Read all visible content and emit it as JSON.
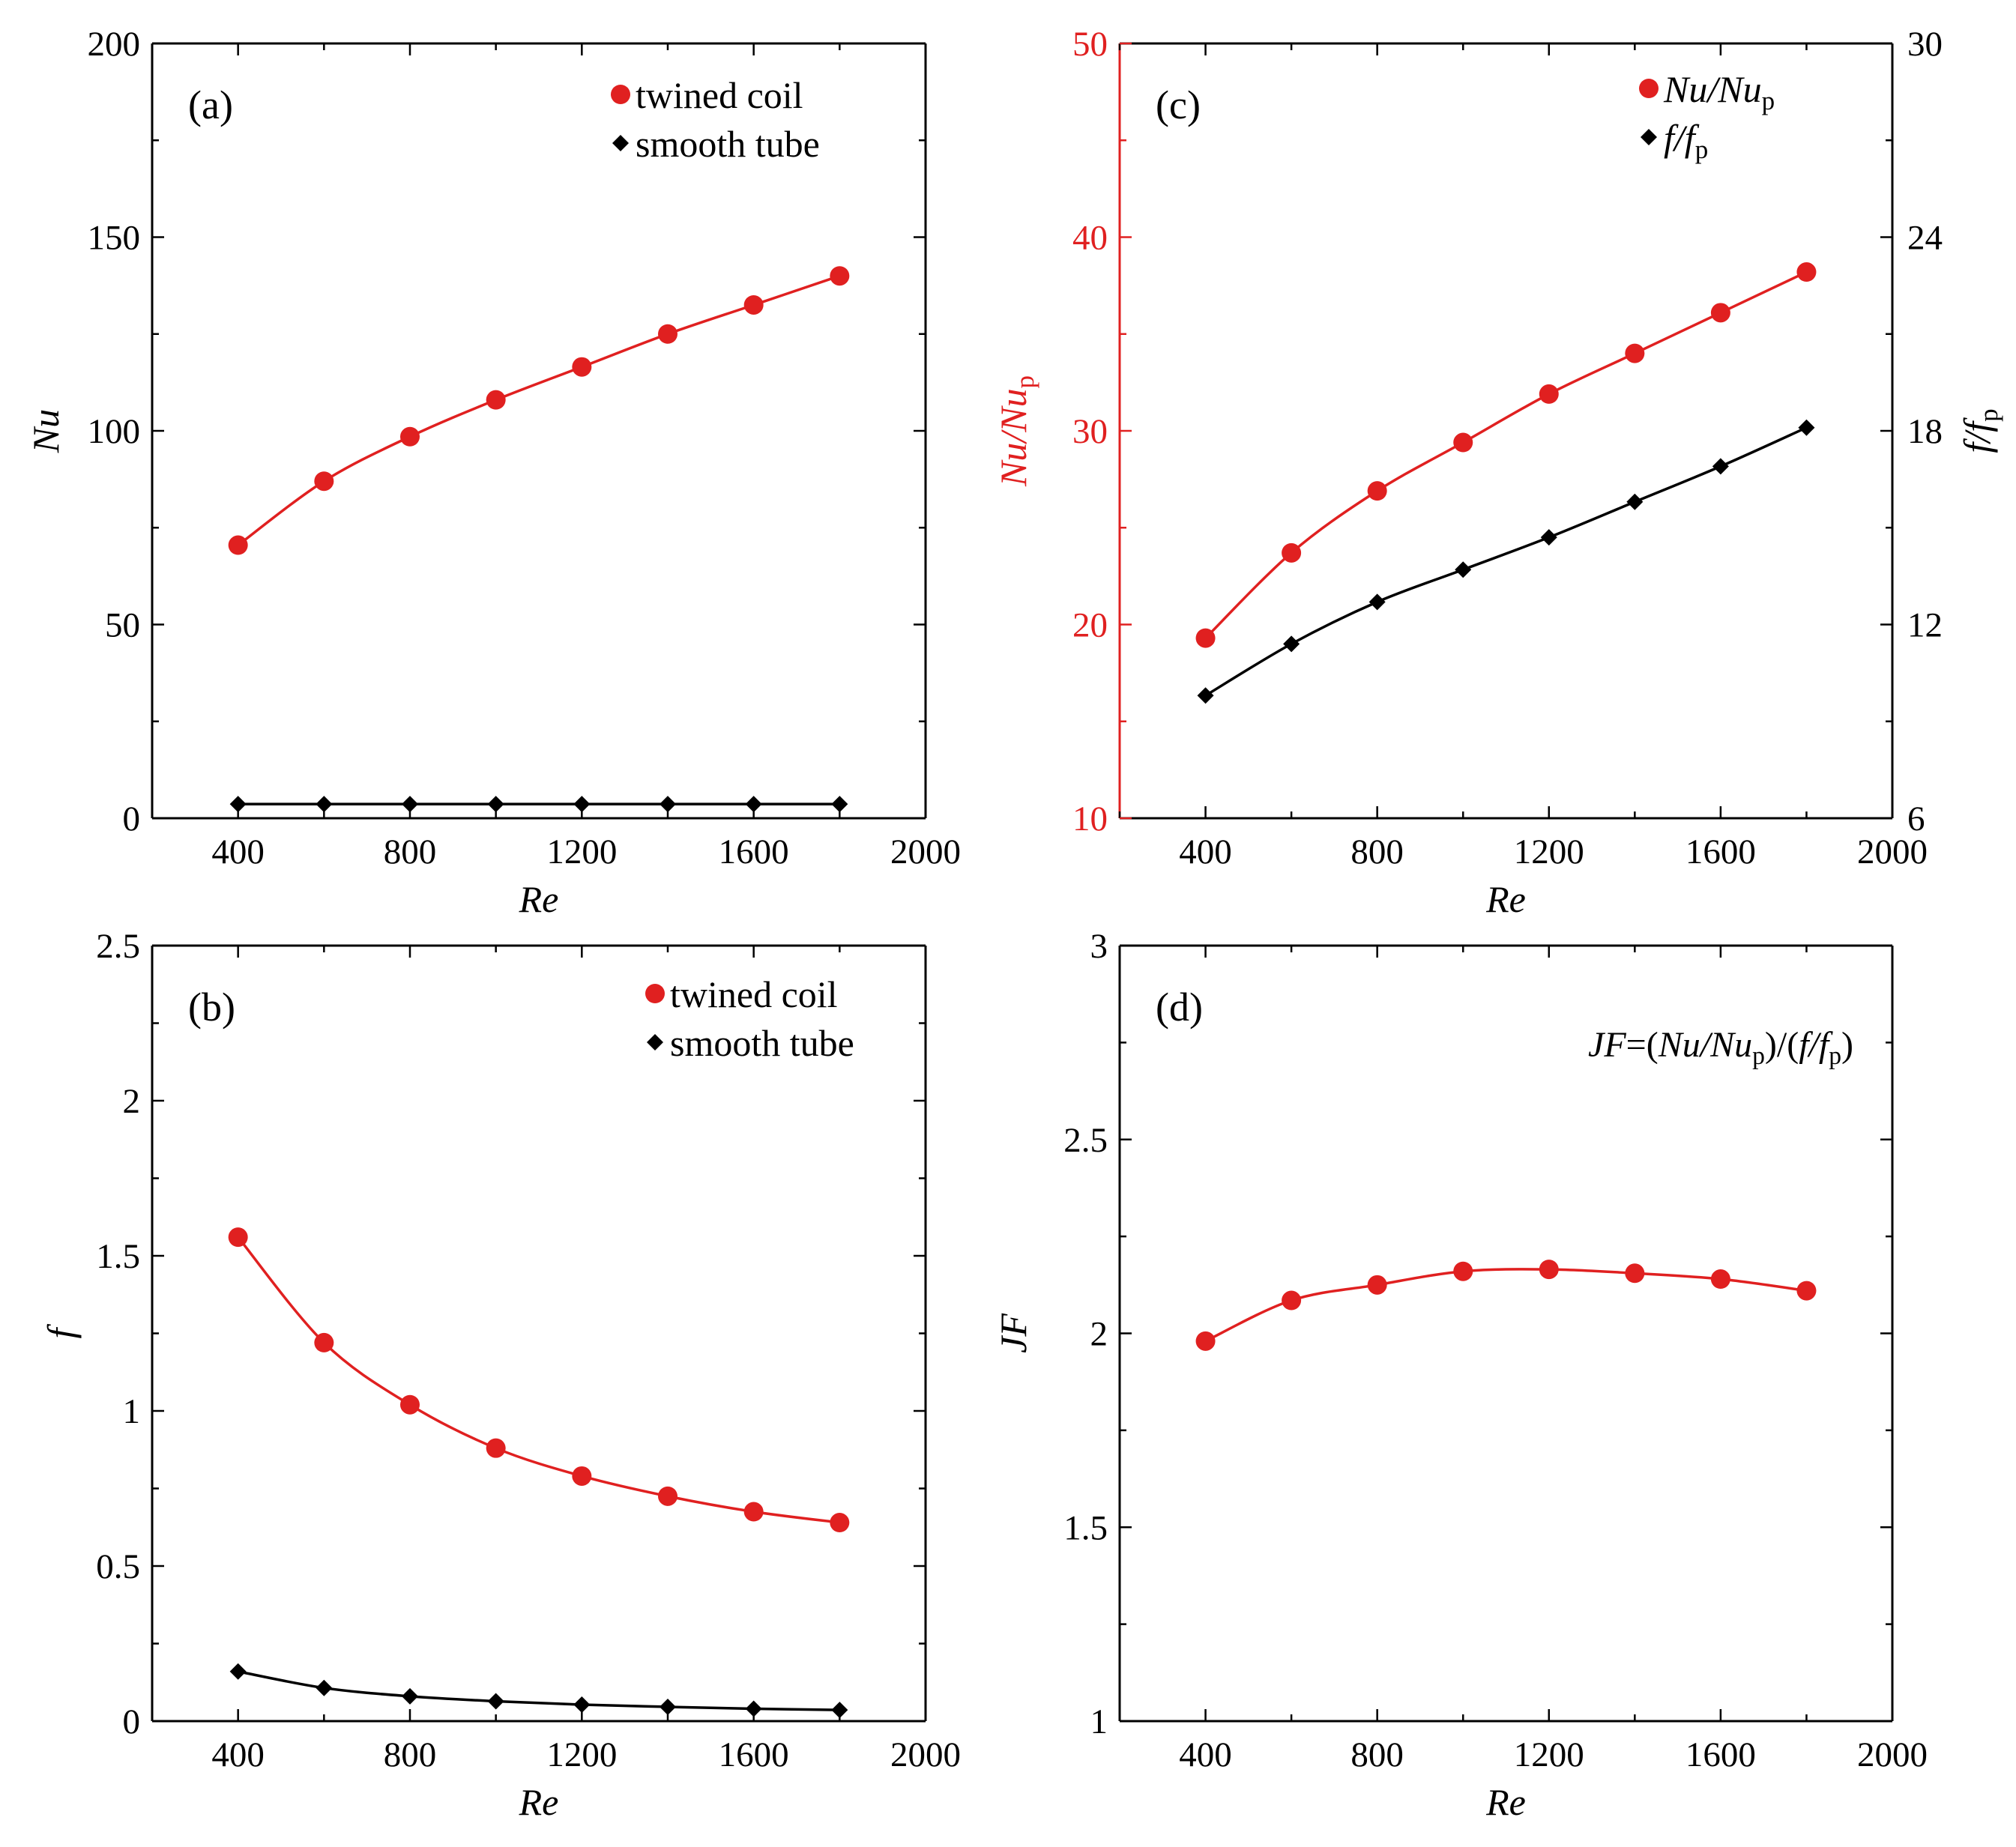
{
  "figure": {
    "colors": {
      "red": "#e02020",
      "black": "#000000",
      "axis": "#000000"
    }
  },
  "chart_data": [
    {
      "id": "a",
      "type": "line",
      "panel_label": "(a)",
      "xlabel": "Re",
      "ylabel": "Nu",
      "xlim": [
        200,
        2000
      ],
      "ylim": [
        0,
        200
      ],
      "x_ticks": [
        400,
        800,
        1200,
        1600,
        2000
      ],
      "y_ticks": [
        0,
        50,
        100,
        150,
        200
      ],
      "legend_position": "top-right",
      "series": [
        {
          "name": "twined coil",
          "marker": "circle",
          "color": "#e02020",
          "x": [
            400,
            600,
            800,
            1000,
            1200,
            1400,
            1600,
            1800
          ],
          "values": [
            70.5,
            87,
            98.5,
            108,
            116.5,
            125,
            132.5,
            140
          ]
        },
        {
          "name": "smooth tube",
          "marker": "diamond",
          "color": "#000000",
          "x": [
            400,
            600,
            800,
            1000,
            1200,
            1400,
            1600,
            1800
          ],
          "values": [
            3.66,
            3.66,
            3.66,
            3.66,
            3.66,
            3.66,
            3.66,
            3.66
          ]
        }
      ]
    },
    {
      "id": "c",
      "type": "line",
      "panel_label": "(c)",
      "xlabel": "Re",
      "ylabel": "Nu/Nu_p",
      "y2label": "f/f_p",
      "xlim": [
        200,
        2000
      ],
      "ylim": [
        10,
        50
      ],
      "y2lim": [
        6,
        30
      ],
      "x_ticks": [
        400,
        800,
        1200,
        1600,
        2000
      ],
      "y_ticks": [
        10,
        20,
        30,
        40,
        50
      ],
      "y2_ticks": [
        6,
        12,
        18,
        24,
        30
      ],
      "legend_position": "top-right",
      "series": [
        {
          "name": "Nu/Nu_p",
          "axis": "left",
          "marker": "circle",
          "color": "#e02020",
          "x": [
            400,
            600,
            800,
            1000,
            1200,
            1400,
            1600,
            1800
          ],
          "values": [
            19.3,
            23.7,
            26.9,
            29.4,
            31.9,
            34.0,
            36.1,
            38.2
          ]
        },
        {
          "name": "f/f_p",
          "axis": "right",
          "marker": "diamond",
          "color": "#000000",
          "x": [
            400,
            600,
            800,
            1000,
            1200,
            1400,
            1600,
            1800
          ],
          "values": [
            9.8,
            11.4,
            12.7,
            13.7,
            14.7,
            15.8,
            16.9,
            18.1
          ]
        }
      ]
    },
    {
      "id": "b",
      "type": "line",
      "panel_label": "(b)",
      "xlabel": "Re",
      "ylabel": "f",
      "xlim": [
        200,
        2000
      ],
      "ylim": [
        0,
        2.5
      ],
      "x_ticks": [
        400,
        800,
        1200,
        1600,
        2000
      ],
      "y_ticks": [
        0,
        0.5,
        1,
        1.5,
        2,
        2.5
      ],
      "legend_position": "top-right",
      "series": [
        {
          "name": "twined coil",
          "marker": "circle",
          "color": "#e02020",
          "x": [
            400,
            600,
            800,
            1000,
            1200,
            1400,
            1600,
            1800
          ],
          "values": [
            1.56,
            1.22,
            1.02,
            0.88,
            0.79,
            0.725,
            0.675,
            0.64
          ]
        },
        {
          "name": "smooth tube",
          "marker": "diamond",
          "color": "#000000",
          "x": [
            400,
            600,
            800,
            1000,
            1200,
            1400,
            1600,
            1800
          ],
          "values": [
            0.16,
            0.107,
            0.08,
            0.064,
            0.053,
            0.046,
            0.04,
            0.036
          ]
        }
      ]
    },
    {
      "id": "d",
      "type": "line",
      "panel_label": "(d)",
      "xlabel": "Re",
      "ylabel": "JF",
      "xlim": [
        200,
        2000
      ],
      "ylim": [
        1,
        3
      ],
      "x_ticks": [
        400,
        800,
        1200,
        1600,
        2000
      ],
      "y_ticks": [
        1,
        1.5,
        2,
        2.5,
        3
      ],
      "annotation": "JF=(Nu/Nu_p)/(f/f_p)",
      "series": [
        {
          "name": "JF",
          "marker": "circle",
          "color": "#e02020",
          "x": [
            400,
            600,
            800,
            1000,
            1200,
            1400,
            1600,
            1800
          ],
          "values": [
            1.98,
            2.085,
            2.125,
            2.16,
            2.165,
            2.155,
            2.14,
            2.11
          ]
        }
      ]
    }
  ]
}
